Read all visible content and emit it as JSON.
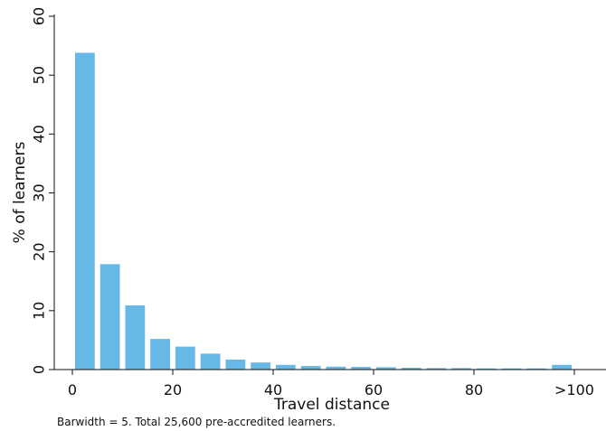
{
  "chart_data": {
    "type": "bar",
    "xlabel": "Travel distance",
    "ylabel": "% of learners",
    "x_bins": [
      2.5,
      7.5,
      12.5,
      17.5,
      22.5,
      27.5,
      32.5,
      37.5,
      42.5,
      47.5,
      52.5,
      57.5,
      62.5,
      67.5,
      72.5,
      77.5,
      82.5,
      87.5,
      92.5,
      97.5
    ],
    "values": [
      53.8,
      17.9,
      10.9,
      5.2,
      3.9,
      2.7,
      1.7,
      1.2,
      0.8,
      0.6,
      0.5,
      0.45,
      0.4,
      0.3,
      0.25,
      0.25,
      0.2,
      0.2,
      0.2,
      0.8
    ],
    "xlim": [
      0,
      105
    ],
    "ylim": [
      0,
      60
    ],
    "x_ticks": [
      0,
      20,
      40,
      60,
      80,
      100
    ],
    "x_tick_labels": [
      "0",
      "20",
      "40",
      "60",
      "80",
      ">100"
    ],
    "y_ticks": [
      0,
      10,
      20,
      30,
      40,
      50,
      60
    ],
    "y_tick_labels": [
      "0",
      "10",
      "20",
      "30",
      "40",
      "50",
      "60"
    ],
    "bar_color": "#66b8e6",
    "grid": false,
    "note": "Barwidth = 5. Total 25,600 pre-accredited learners."
  }
}
